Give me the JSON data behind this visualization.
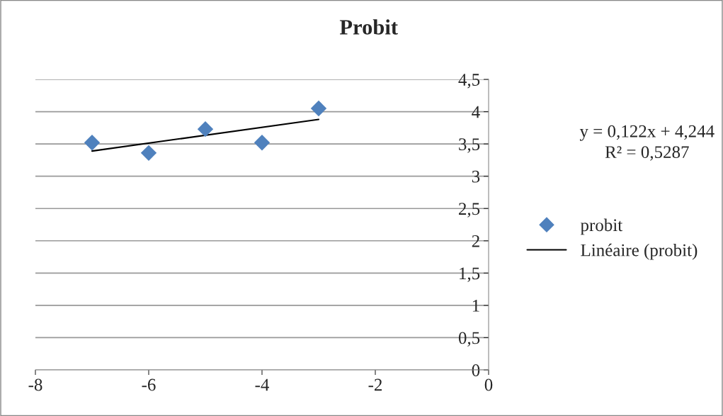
{
  "chart_data": {
    "type": "scatter",
    "title": "Probit",
    "series": [
      {
        "name": "probit",
        "color": "#4f81bd",
        "marker": "diamond",
        "x": [
          -7,
          -6,
          -5,
          -4,
          -3
        ],
        "values": [
          3.52,
          3.36,
          3.73,
          3.52,
          4.05
        ]
      },
      {
        "name": "Linéaire (probit)",
        "type": "line",
        "color": "#000000",
        "marker": "none",
        "line_style": "solid",
        "x": [
          -7,
          -3
        ],
        "values": [
          3.39,
          3.88
        ]
      }
    ],
    "xlim": [
      -8,
      0
    ],
    "xticks": [
      -8,
      -6,
      -4,
      -2,
      0
    ],
    "ylim": [
      0,
      4.5
    ],
    "yticks": [
      0,
      {
        "value": 0.5,
        "label": "0,5"
      },
      1,
      {
        "value": 1.5,
        "label": "1,5"
      },
      2,
      {
        "value": 2.5,
        "label": "2,5"
      },
      3,
      {
        "value": 3.5,
        "label": "3,5"
      },
      4,
      {
        "value": 4.5,
        "label": "4,5"
      }
    ],
    "grid": "y",
    "legend": "right",
    "annotations": [
      "y = 0,122x + 4,244",
      "R² = 0,5287"
    ]
  }
}
